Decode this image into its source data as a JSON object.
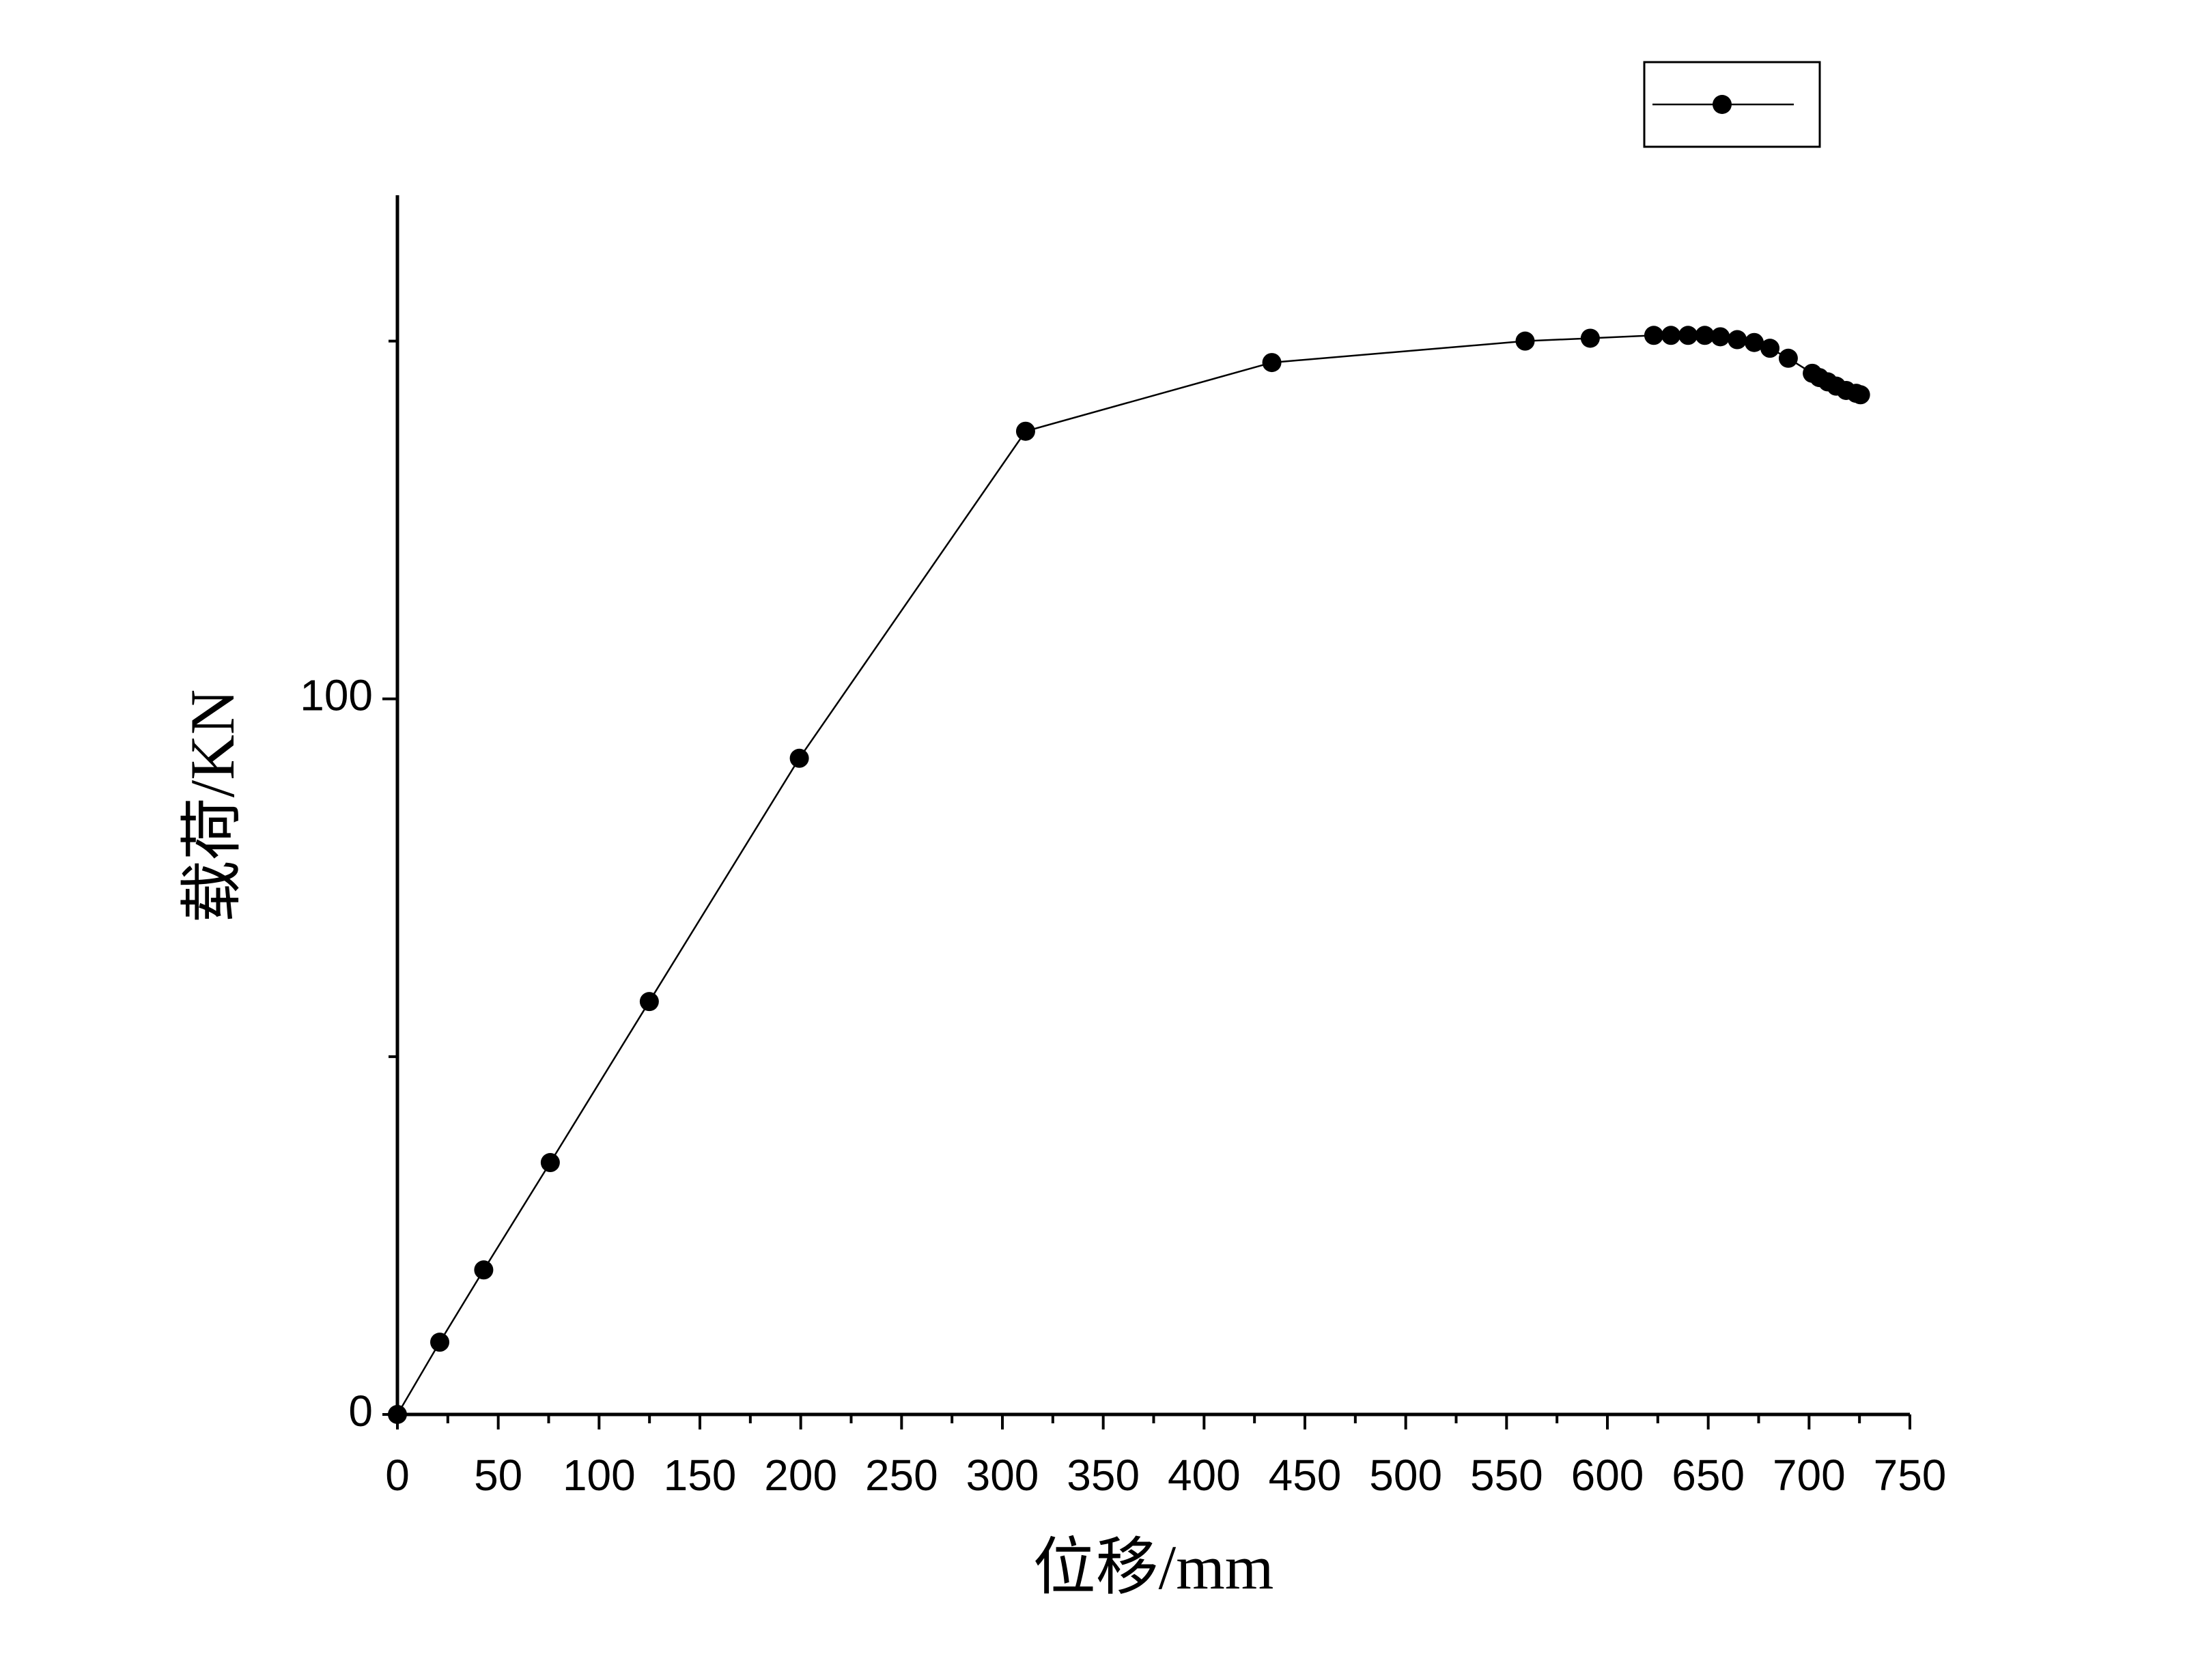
{
  "chart_data": {
    "type": "line",
    "x_label": "位移/mm",
    "y_label": "载荷/KN",
    "x": [
      0,
      21,
      42.8,
      75.8,
      124.9,
      199.3,
      311.5,
      433.6,
      559.2,
      591.5,
      623,
      631.5,
      640,
      648.3,
      656,
      664.4,
      672.8,
      680.6,
      689.7,
      701.6,
      705.1,
      709.3,
      713.5,
      718.4,
      723.4,
      725.5
    ],
    "series": [
      {
        "color": "#000000",
        "values": [
          0,
          10.1,
          20.2,
          35.2,
          57.7,
          91.7,
          137.4,
          147.0,
          150.0,
          150.4,
          150.8,
          150.8,
          150.8,
          150.8,
          150.6,
          150.2,
          149.8,
          149.0,
          147.6,
          145.5,
          144.9,
          144.3,
          143.7,
          143.1,
          142.7,
          142.5
        ]
      }
    ],
    "xlim": [
      0,
      750
    ],
    "xticks": [
      0,
      50,
      100,
      150,
      200,
      250,
      300,
      350,
      400,
      450,
      500,
      550,
      600,
      650,
      700,
      750
    ],
    "x_minor_ticks": [
      25,
      75,
      125,
      175,
      225,
      275,
      325,
      375,
      425,
      475,
      525,
      575,
      625,
      675,
      725
    ],
    "ylim": [
      0,
      170
    ],
    "yticks": [
      0,
      100
    ],
    "y_minor_ticks": [
      50,
      150
    ],
    "grid": false,
    "legend": "top-right"
  }
}
